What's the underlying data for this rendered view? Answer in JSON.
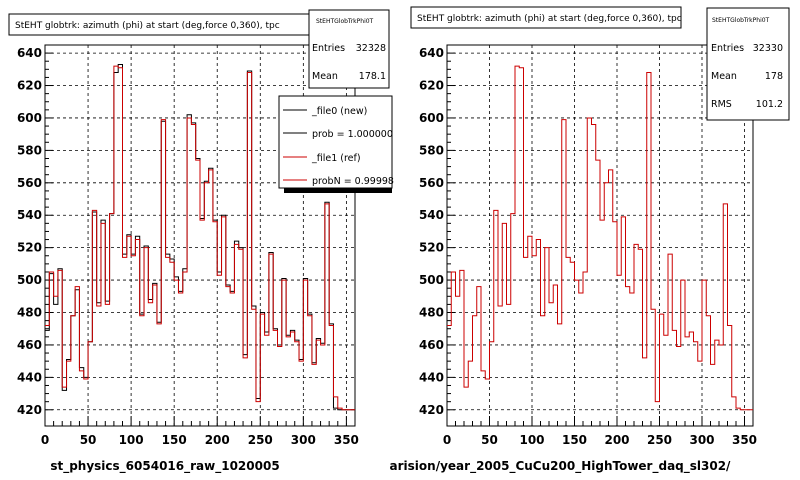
{
  "chart_data": [
    {
      "type": "step",
      "title": "StEHT globtrk: azimuth (phi) at start (deg,force 0,360), tpc",
      "xlabel": "st_physics_6054016_raw_1020005",
      "xlim": [
        0,
        360
      ],
      "ylim": [
        410,
        645
      ],
      "xticks": [
        0,
        50,
        100,
        150,
        200,
        250,
        300,
        350
      ],
      "yticks": [
        420,
        440,
        460,
        480,
        500,
        520,
        540,
        560,
        580,
        600,
        620,
        640
      ],
      "grid": true,
      "bin_width": 5,
      "series": [
        {
          "name": "_file0 (new)",
          "color": "#000000",
          "values": [
            469,
            504,
            485,
            507,
            432,
            451,
            478,
            494,
            446,
            440,
            462,
            542,
            486,
            537,
            487,
            541,
            628,
            633,
            516,
            528,
            516,
            527,
            479,
            521,
            488,
            498,
            474,
            598,
            516,
            513,
            502,
            493,
            507,
            602,
            597,
            575,
            538,
            561,
            569,
            537,
            505,
            540,
            497,
            493,
            524,
            520,
            454,
            629,
            484,
            427,
            480,
            468,
            517,
            470,
            460,
            501,
            466,
            469,
            463,
            451,
            501,
            479,
            449,
            464,
            461,
            548,
            473,
            421,
            420,
            420,
            420,
            420
          ]
        },
        {
          "name": "_file1 (ref)",
          "color": "#cc0000",
          "values": [
            472,
            505,
            490,
            506,
            434,
            450,
            478,
            496,
            444,
            439,
            462,
            543,
            484,
            535,
            485,
            541,
            632,
            631,
            514,
            527,
            515,
            525,
            478,
            520,
            486,
            497,
            473,
            599,
            514,
            511,
            500,
            492,
            505,
            600,
            596,
            574,
            537,
            560,
            568,
            536,
            503,
            539,
            496,
            492,
            522,
            519,
            452,
            628,
            482,
            425,
            479,
            466,
            516,
            469,
            459,
            500,
            465,
            468,
            462,
            450,
            500,
            478,
            448,
            463,
            460,
            547,
            472,
            428,
            421,
            420,
            420,
            420
          ]
        }
      ],
      "stats": {
        "box_title": "StEHTGlobTrkPhi0T",
        "Entries": "32328",
        "Mean": "178.1"
      },
      "legend": [
        {
          "label": "_file0 (new)",
          "color": "#000000"
        },
        {
          "label": "prob = 1.000000",
          "color": "#000000"
        },
        {
          "label": "_file1 (ref)",
          "color": "#cc0000"
        },
        {
          "label": "probN = 0.99998",
          "color": "#cc0000"
        }
      ],
      "legend_position": "top-right"
    },
    {
      "type": "step",
      "title": "StEHT globtrk: azimuth (phi) at start (deg,force 0,360), tpc",
      "xlabel": "arision/year_2005_CuCu200_HighTower_daq_sl302/",
      "xlim": [
        0,
        360
      ],
      "ylim": [
        410,
        645
      ],
      "xticks": [
        0,
        50,
        100,
        150,
        200,
        250,
        300,
        350
      ],
      "yticks": [
        420,
        440,
        460,
        480,
        500,
        520,
        540,
        560,
        580,
        600,
        620,
        640
      ],
      "grid": true,
      "bin_width": 5,
      "series": [
        {
          "name": "",
          "color": "#cc0000",
          "values": [
            472,
            505,
            490,
            506,
            434,
            450,
            478,
            496,
            444,
            439,
            462,
            543,
            484,
            535,
            485,
            541,
            632,
            631,
            514,
            527,
            515,
            525,
            478,
            520,
            486,
            497,
            473,
            599,
            514,
            511,
            500,
            492,
            505,
            600,
            596,
            574,
            537,
            560,
            568,
            536,
            503,
            539,
            496,
            492,
            522,
            519,
            452,
            628,
            482,
            425,
            479,
            466,
            516,
            469,
            459,
            500,
            465,
            468,
            462,
            450,
            500,
            478,
            448,
            463,
            460,
            547,
            472,
            428,
            421,
            420,
            420,
            420
          ]
        }
      ],
      "stats": {
        "box_title": "StEHTGlobTrkPhi0T",
        "Entries": "32330",
        "Mean": "178",
        "RMS": "101.2"
      }
    }
  ],
  "footer": {
    "small_text": ""
  }
}
